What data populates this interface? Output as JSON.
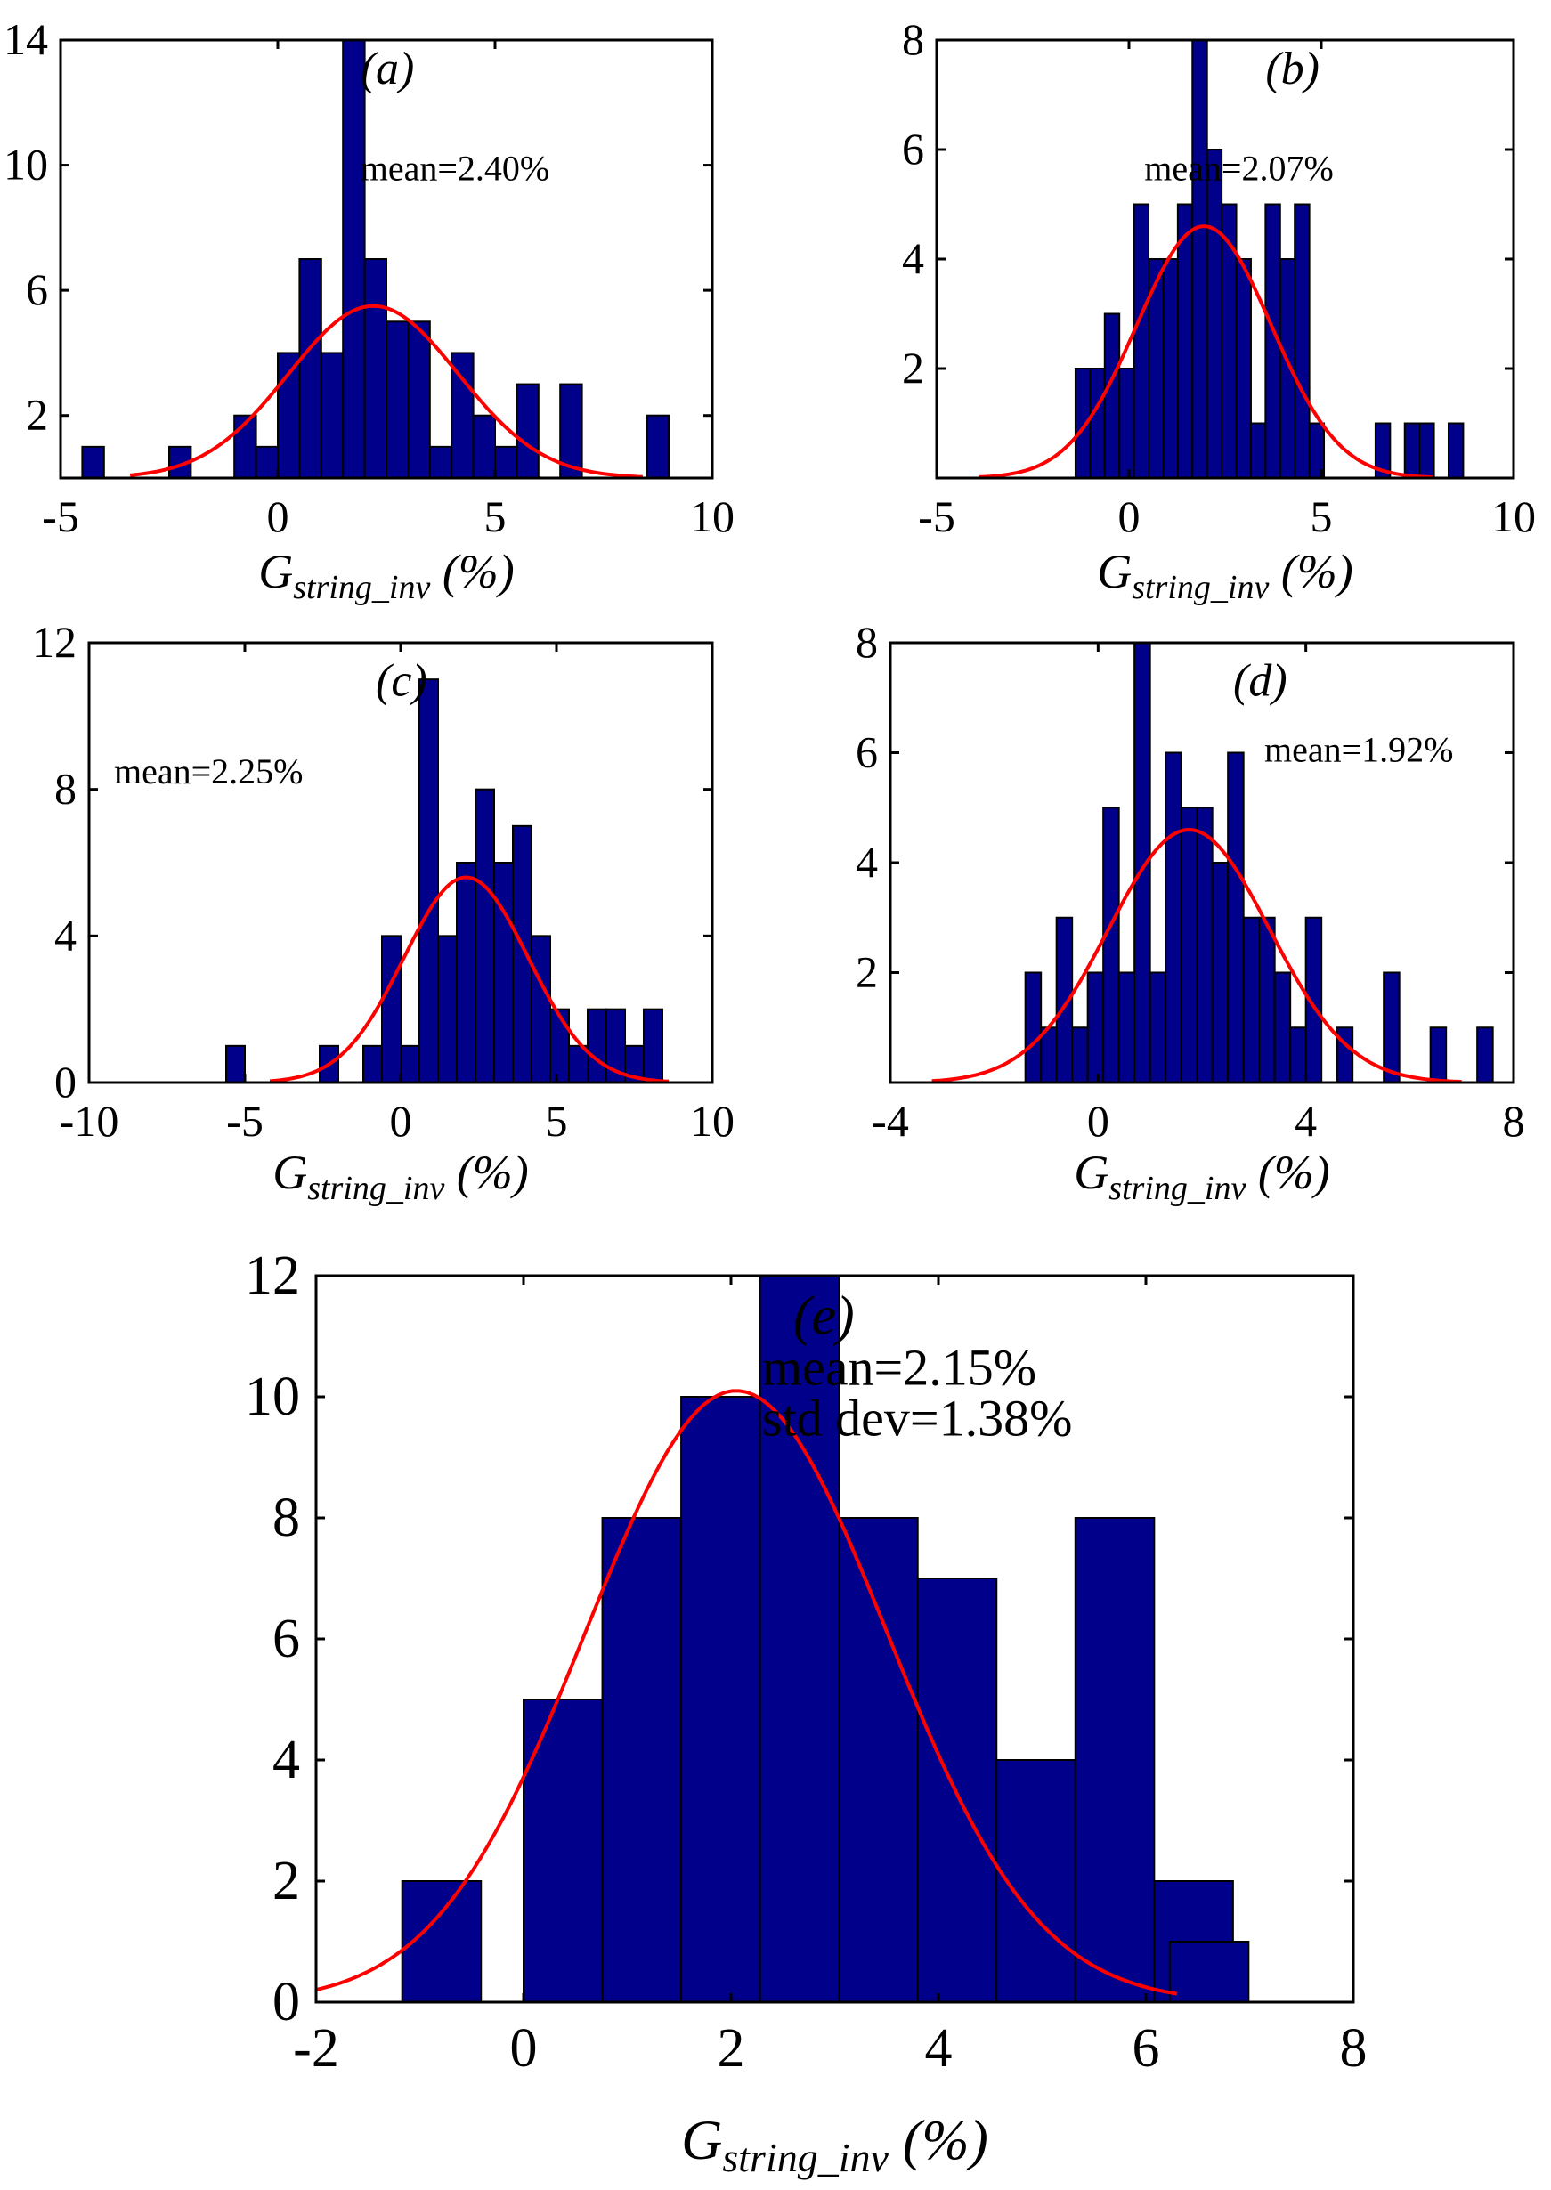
{
  "chart_data": [
    {
      "id": "a",
      "type": "bar",
      "tag": "(a)",
      "annotations": [
        "mean=2.40%"
      ],
      "xlabel_main": "G",
      "xlabel_sub": "string_inv",
      "xlabel_tail": " (%)",
      "xlim": [
        -5,
        10
      ],
      "ylim": [
        0,
        14
      ],
      "xticks": [
        -5,
        0,
        5,
        10
      ],
      "yticks": [
        2,
        6,
        10,
        14
      ],
      "bin_width": 0.5,
      "bins": [
        {
          "x": -4.25,
          "y": 1
        },
        {
          "x": -2.25,
          "y": 1
        },
        {
          "x": -0.75,
          "y": 2
        },
        {
          "x": -0.25,
          "y": 1
        },
        {
          "x": 0.25,
          "y": 4
        },
        {
          "x": 0.75,
          "y": 7
        },
        {
          "x": 1.25,
          "y": 4
        },
        {
          "x": 1.75,
          "y": 14
        },
        {
          "x": 2.25,
          "y": 7
        },
        {
          "x": 2.75,
          "y": 5
        },
        {
          "x": 3.25,
          "y": 5
        },
        {
          "x": 3.75,
          "y": 1
        },
        {
          "x": 4.25,
          "y": 4
        },
        {
          "x": 4.75,
          "y": 2
        },
        {
          "x": 5.25,
          "y": 1
        },
        {
          "x": 5.75,
          "y": 3
        },
        {
          "x": 6.75,
          "y": 3
        },
        {
          "x": 8.75,
          "y": 2
        }
      ],
      "fit": {
        "mu": 2.2,
        "sigma": 1.95,
        "peak": 5.5,
        "range": [
          -3.4,
          8.4
        ]
      }
    },
    {
      "id": "b",
      "type": "bar",
      "tag": "(b)",
      "annotations": [
        "mean=2.07%"
      ],
      "xlabel_main": "G",
      "xlabel_sub": "string_inv",
      "xlabel_tail": " (%)",
      "xlim": [
        -5,
        10
      ],
      "ylim": [
        0,
        8
      ],
      "xticks": [
        -5,
        0,
        5,
        10
      ],
      "yticks": [
        2,
        4,
        6,
        8
      ],
      "bin_width": 0.38,
      "bins": [
        {
          "x": -1.2,
          "y": 2
        },
        {
          "x": -0.82,
          "y": 2
        },
        {
          "x": -0.44,
          "y": 3
        },
        {
          "x": -0.06,
          "y": 2
        },
        {
          "x": 0.32,
          "y": 5
        },
        {
          "x": 0.7,
          "y": 4
        },
        {
          "x": 1.08,
          "y": 4
        },
        {
          "x": 1.46,
          "y": 5
        },
        {
          "x": 1.84,
          "y": 8
        },
        {
          "x": 2.22,
          "y": 6
        },
        {
          "x": 2.6,
          "y": 5
        },
        {
          "x": 2.98,
          "y": 4
        },
        {
          "x": 3.36,
          "y": 1
        },
        {
          "x": 3.74,
          "y": 5
        },
        {
          "x": 4.12,
          "y": 4
        },
        {
          "x": 4.5,
          "y": 5
        },
        {
          "x": 4.88,
          "y": 1
        },
        {
          "x": 6.6,
          "y": 1
        },
        {
          "x": 7.36,
          "y": 1
        },
        {
          "x": 7.74,
          "y": 1
        },
        {
          "x": 8.5,
          "y": 1
        }
      ],
      "fit": {
        "mu": 1.95,
        "sigma": 1.75,
        "peak": 4.6,
        "range": [
          -3.9,
          7.9
        ]
      }
    },
    {
      "id": "c",
      "type": "bar",
      "tag": "(c)",
      "annotations": [
        "mean=2.25%"
      ],
      "xlabel_main": "G",
      "xlabel_sub": "string_inv",
      "xlabel_tail": " (%)",
      "xlim": [
        -10,
        10
      ],
      "ylim": [
        0,
        12
      ],
      "xticks": [
        -10,
        -5,
        0,
        5,
        10
      ],
      "yticks": [
        0,
        4,
        8,
        12
      ],
      "bin_width": 0.6,
      "bins": [
        {
          "x": -5.3,
          "y": 1
        },
        {
          "x": -2.3,
          "y": 1
        },
        {
          "x": -0.9,
          "y": 1
        },
        {
          "x": -0.3,
          "y": 4
        },
        {
          "x": 0.3,
          "y": 1
        },
        {
          "x": 0.9,
          "y": 11
        },
        {
          "x": 1.5,
          "y": 4
        },
        {
          "x": 2.1,
          "y": 6
        },
        {
          "x": 2.7,
          "y": 8
        },
        {
          "x": 3.3,
          "y": 6
        },
        {
          "x": 3.9,
          "y": 7
        },
        {
          "x": 4.5,
          "y": 4
        },
        {
          "x": 5.1,
          "y": 2
        },
        {
          "x": 5.7,
          "y": 1
        },
        {
          "x": 6.3,
          "y": 2
        },
        {
          "x": 6.9,
          "y": 2
        },
        {
          "x": 7.5,
          "y": 1
        },
        {
          "x": 8.1,
          "y": 2
        }
      ],
      "fit": {
        "mu": 2.1,
        "sigma": 2.0,
        "peak": 5.6,
        "range": [
          -4.2,
          8.6
        ]
      }
    },
    {
      "id": "d",
      "type": "bar",
      "tag": "(d)",
      "annotations": [
        "mean=1.92%"
      ],
      "xlabel_main": "G",
      "xlabel_sub": "string_inv",
      "xlabel_tail": " (%)",
      "xlim": [
        -4,
        8
      ],
      "ylim": [
        0,
        8
      ],
      "xticks": [
        -4,
        0,
        4,
        8
      ],
      "yticks": [
        2,
        4,
        6,
        8
      ],
      "bin_width": 0.3,
      "bins": [
        {
          "x": -1.25,
          "y": 2
        },
        {
          "x": -0.95,
          "y": 1
        },
        {
          "x": -0.65,
          "y": 3
        },
        {
          "x": -0.35,
          "y": 1
        },
        {
          "x": -0.05,
          "y": 2
        },
        {
          "x": 0.25,
          "y": 5
        },
        {
          "x": 0.55,
          "y": 2
        },
        {
          "x": 0.85,
          "y": 8
        },
        {
          "x": 1.15,
          "y": 2
        },
        {
          "x": 1.45,
          "y": 6
        },
        {
          "x": 1.75,
          "y": 5
        },
        {
          "x": 2.05,
          "y": 5
        },
        {
          "x": 2.35,
          "y": 4
        },
        {
          "x": 2.65,
          "y": 6
        },
        {
          "x": 2.95,
          "y": 3
        },
        {
          "x": 3.25,
          "y": 3
        },
        {
          "x": 3.55,
          "y": 2
        },
        {
          "x": 3.85,
          "y": 1
        },
        {
          "x": 4.15,
          "y": 3
        },
        {
          "x": 4.75,
          "y": 1
        },
        {
          "x": 5.65,
          "y": 2
        },
        {
          "x": 6.55,
          "y": 1
        },
        {
          "x": 7.45,
          "y": 1
        }
      ],
      "fit": {
        "mu": 1.75,
        "sigma": 1.55,
        "peak": 4.6,
        "range": [
          -3.2,
          7.0
        ]
      }
    },
    {
      "id": "e",
      "type": "bar",
      "tag": "(e)",
      "annotations": [
        "mean=2.15%",
        "std dev=1.38%"
      ],
      "xlabel_main": "G",
      "xlabel_sub": "string_inv",
      "xlabel_tail": " (%)",
      "xlim": [
        -2,
        8
      ],
      "ylim": [
        0,
        12
      ],
      "xticks": [
        -2,
        0,
        2,
        4,
        6,
        8
      ],
      "yticks": [
        0,
        2,
        4,
        6,
        8,
        10,
        12
      ],
      "bin_width": 0.76,
      "bins": [
        {
          "x": -0.79,
          "y": 2
        },
        {
          "x": 0.38,
          "y": 5
        },
        {
          "x": 1.14,
          "y": 8
        },
        {
          "x": 1.9,
          "y": 10
        },
        {
          "x": 2.66,
          "y": 12
        },
        {
          "x": 3.42,
          "y": 8
        },
        {
          "x": 4.18,
          "y": 7
        },
        {
          "x": 4.94,
          "y": 4
        },
        {
          "x": 5.7,
          "y": 8
        },
        {
          "x": 6.46,
          "y": 2
        },
        {
          "x": 6.61,
          "y": 1
        }
      ],
      "fit": {
        "mu": 2.05,
        "sigma": 1.45,
        "peak": 10.1,
        "range": [
          -2.0,
          6.3
        ]
      }
    }
  ]
}
